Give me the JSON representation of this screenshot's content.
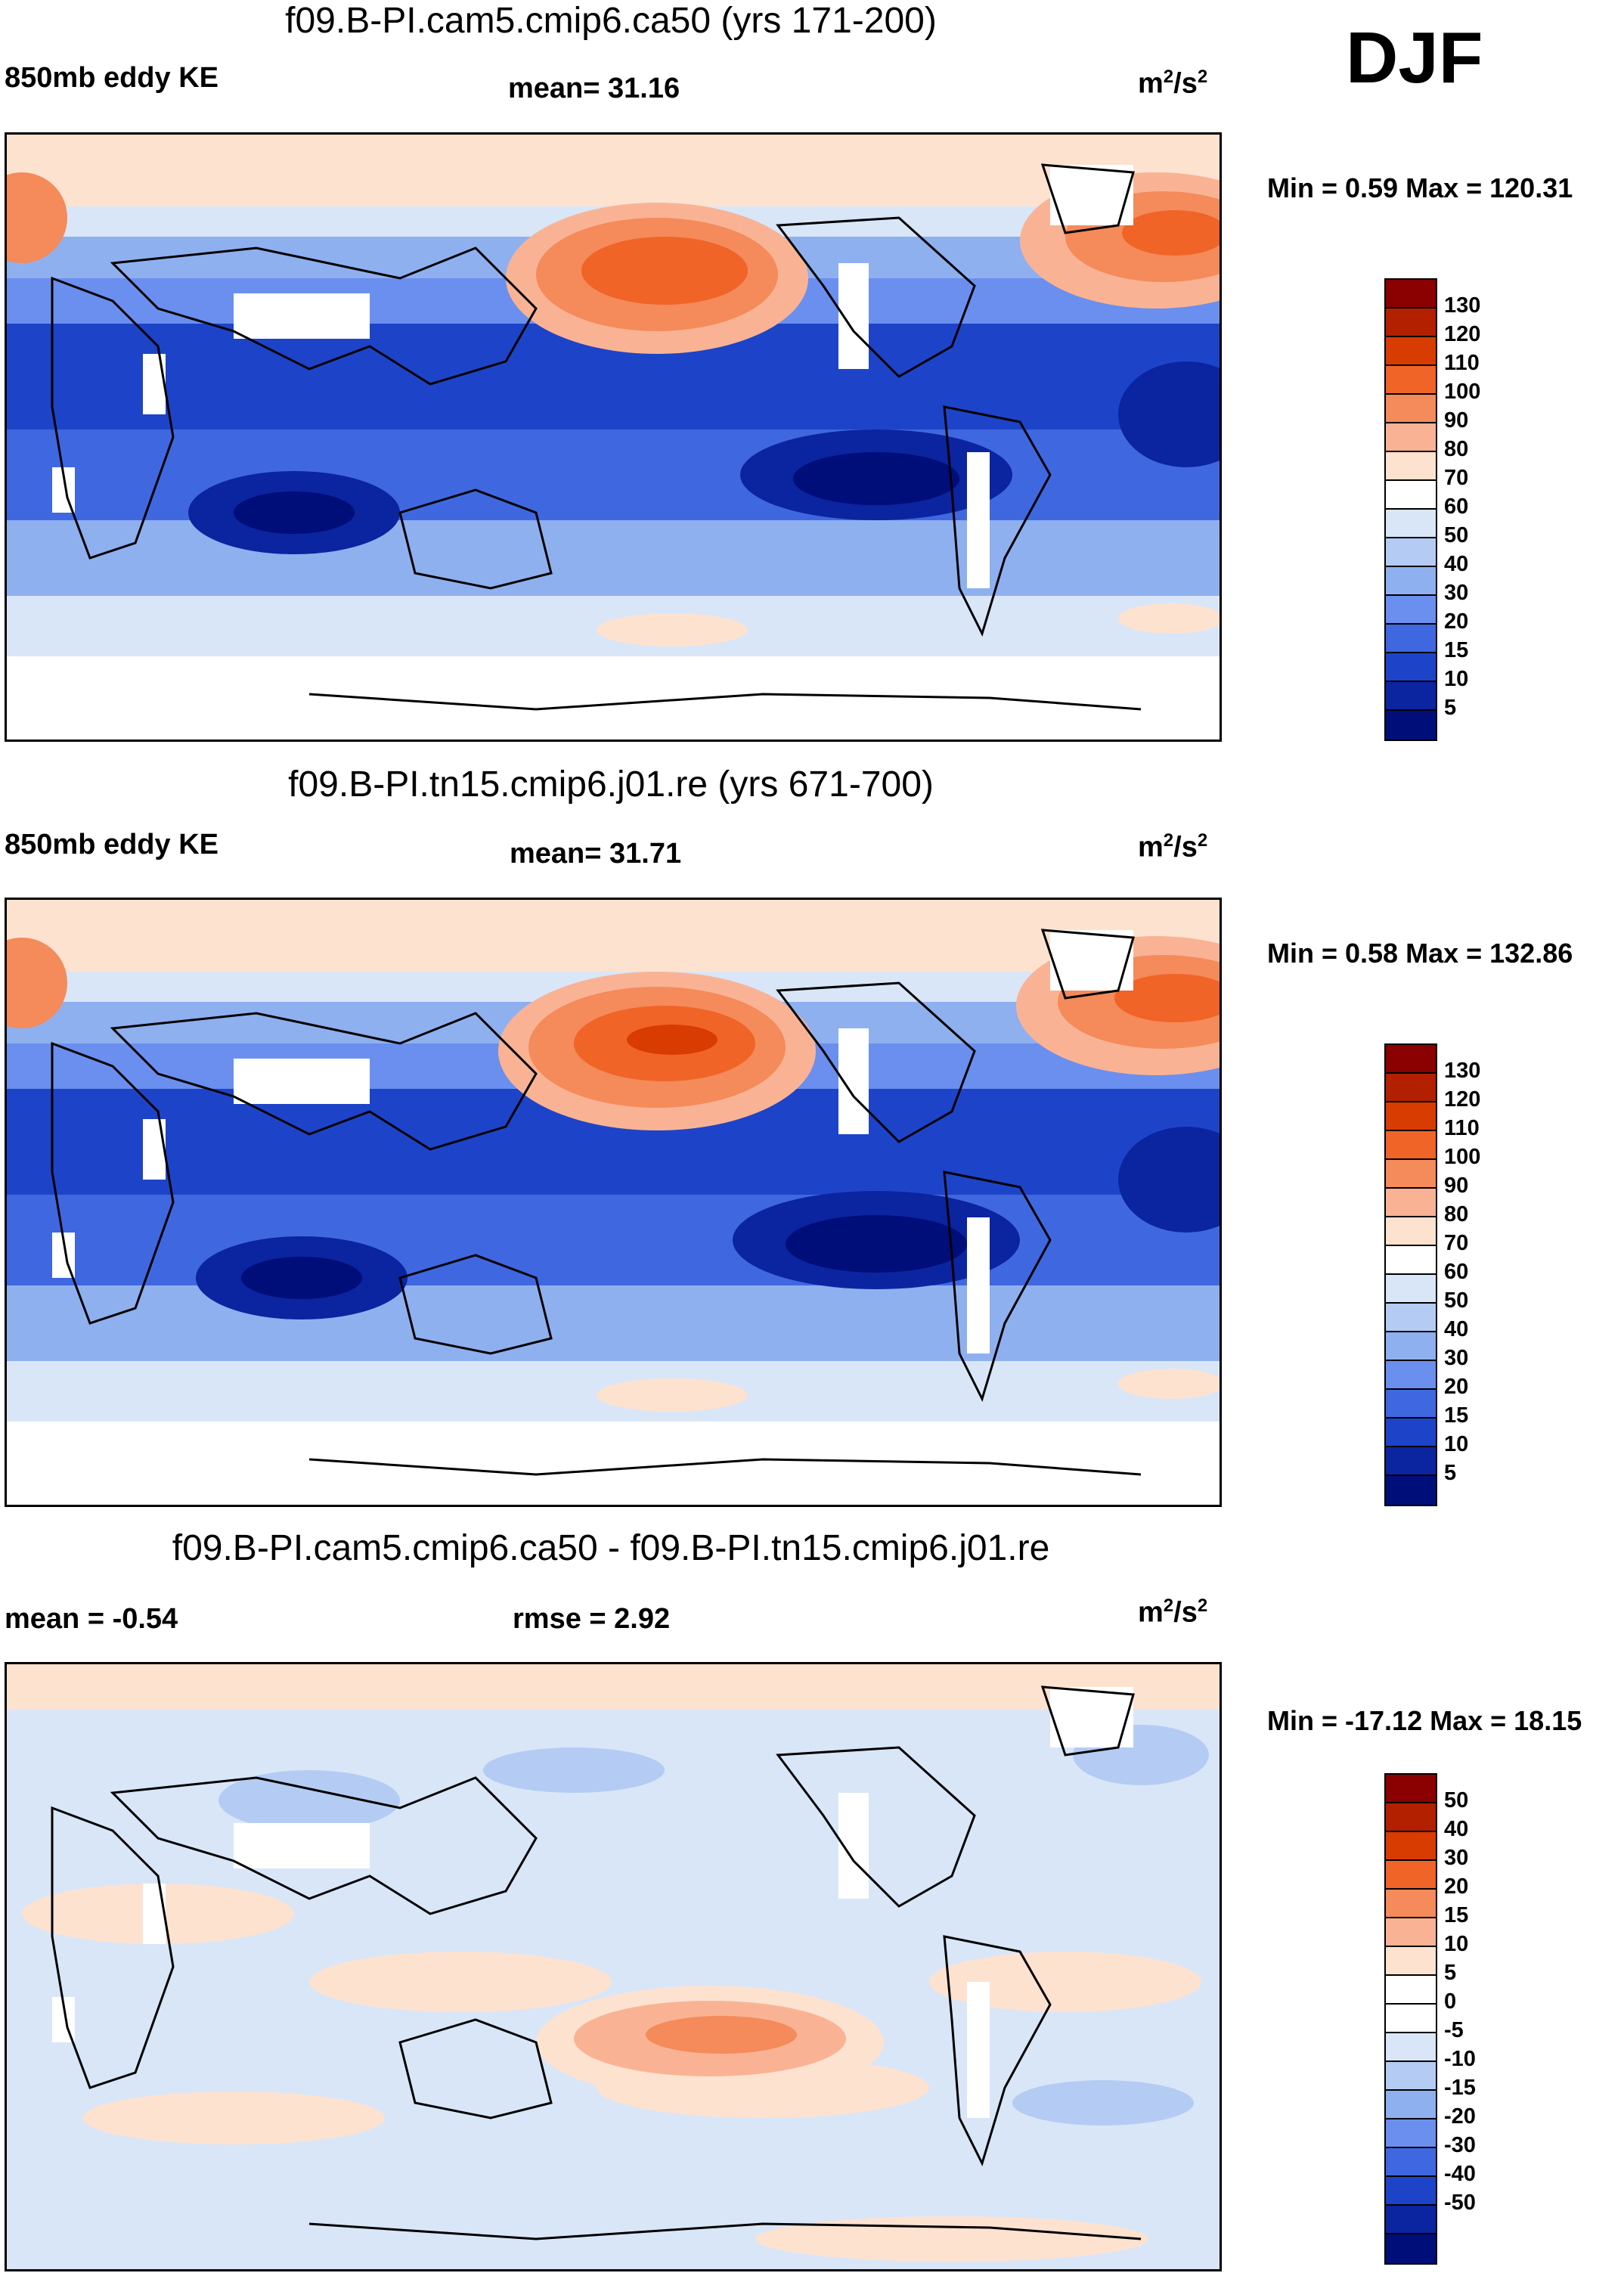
{
  "season": "DJF",
  "panels": [
    {
      "title": "f09.B-PI.cam5.cmip6.ca50 (yrs 171-200)",
      "left_label": "850mb eddy KE",
      "center_label": "mean=  31.16",
      "units_base": "m",
      "units_sup1": "2",
      "units_mid": "/s",
      "units_sup2": "2",
      "minmax": "Min =   0.59 Max = 120.31",
      "colorbar_labels": [
        "130",
        "120",
        "110",
        "100",
        "90",
        "80",
        "70",
        "60",
        "50",
        "40",
        "30",
        "20",
        "15",
        "10",
        "5"
      ]
    },
    {
      "title": "f09.B-PI.tn15.cmip6.j01.re (yrs 671-700)",
      "left_label": "850mb eddy KE",
      "center_label": "mean=  31.71",
      "units_base": "m",
      "units_sup1": "2",
      "units_mid": "/s",
      "units_sup2": "2",
      "minmax": "Min =   0.58 Max = 132.86",
      "colorbar_labels": [
        "130",
        "120",
        "110",
        "100",
        "90",
        "80",
        "70",
        "60",
        "50",
        "40",
        "30",
        "20",
        "15",
        "10",
        "5"
      ]
    },
    {
      "title": "f09.B-PI.cam5.cmip6.ca50 - f09.B-PI.tn15.cmip6.j01.re",
      "left_label": "mean =  -0.54",
      "center_label": "rmse =    2.92",
      "units_base": "m",
      "units_sup1": "2",
      "units_mid": "/s",
      "units_sup2": "2",
      "minmax": "Min = -17.12 Max =  18.15",
      "colorbar_labels": [
        "50",
        "40",
        "30",
        "20",
        "15",
        "10",
        "5",
        "0",
        "-5",
        "-10",
        "-15",
        "-20",
        "-30",
        "-40",
        "-50"
      ]
    }
  ],
  "colors": {
    "scale_ke": [
      "#8b0000",
      "#b22000",
      "#d83c00",
      "#f06428",
      "#f58a5a",
      "#f9b394",
      "#fde2d0",
      "#ffffff",
      "#d9e6f8",
      "#b4ccf3",
      "#8fb0ef",
      "#6a8fee",
      "#3f68e0",
      "#1d44c8",
      "#0b249f",
      "#000e7a"
    ],
    "scale_diff": [
      "#8b0000",
      "#b22000",
      "#d83c00",
      "#f06428",
      "#f58a5a",
      "#f9b394",
      "#fde2d0",
      "#ffffff",
      "#ffffff",
      "#d9e6f8",
      "#b4ccf3",
      "#8fb0ef",
      "#6a8fee",
      "#3f68e0",
      "#1d44c8",
      "#0b249f",
      "#000e7a"
    ]
  }
}
